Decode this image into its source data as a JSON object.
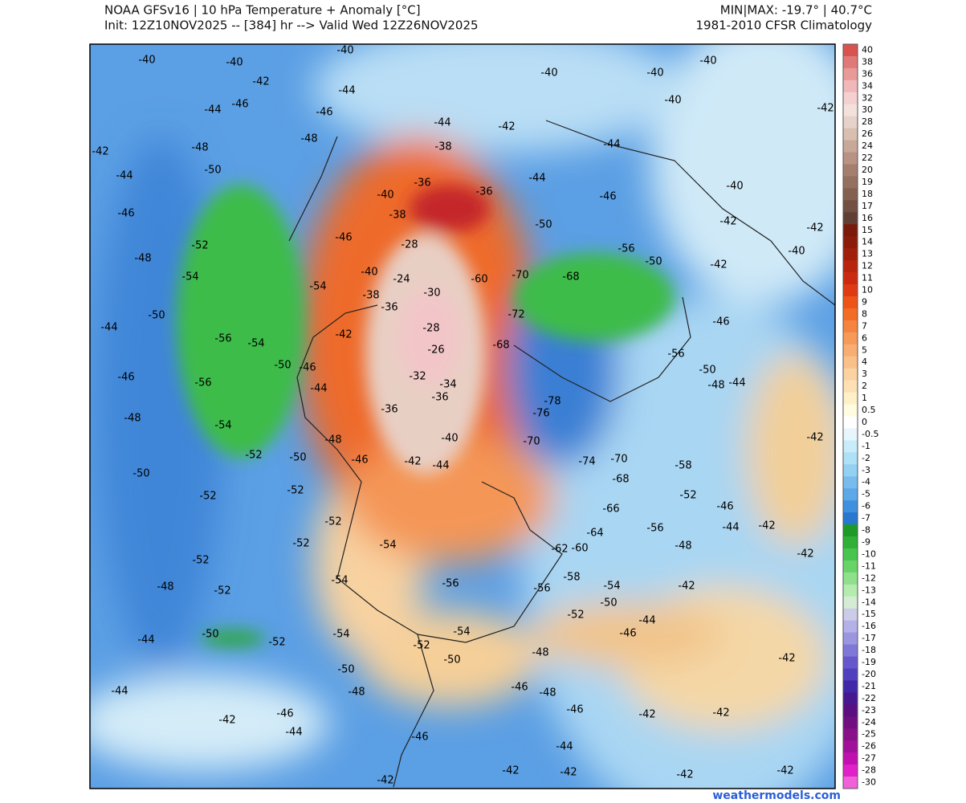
{
  "header": {
    "title": "NOAA GFSv16 | 10 hPa Temperature + Anomaly [°C]",
    "init": "Init: 12Z10NOV2025 -- [384] hr --> Valid Wed 12Z26NOV2025",
    "minmax": "MIN|MAX: -19.7° | 40.7°C",
    "climatology": "1981-2010 CFSR Climatology"
  },
  "colorbar": {
    "values": [
      40,
      38,
      36,
      34,
      32,
      30,
      28,
      26,
      24,
      22,
      20,
      19,
      18,
      17,
      16,
      15,
      14,
      13,
      12,
      11,
      10,
      9,
      8,
      7,
      6,
      5,
      4,
      3,
      2,
      1,
      0.5,
      0,
      -0.5,
      -1,
      -2,
      -3,
      -4,
      -5,
      -6,
      -7,
      -8,
      -9,
      -10,
      -11,
      -12,
      -13,
      -14,
      -15,
      -16,
      -17,
      -18,
      -19,
      -20,
      -21,
      -22,
      -23,
      -24,
      -25,
      -26,
      -27,
      -28,
      -30
    ],
    "colors": [
      "#d9544f",
      "#e07a78",
      "#e89a98",
      "#f0b8b8",
      "#f5d0d0",
      "#f3e2dc",
      "#e6d2c8",
      "#d8bfb0",
      "#c8a898",
      "#b89282",
      "#a67e6e",
      "#957060",
      "#846050",
      "#725042",
      "#604035",
      "#7a1a0a",
      "#8c1c0a",
      "#a0200c",
      "#b8240e",
      "#cc2a10",
      "#e03a14",
      "#ee5418",
      "#f26c26",
      "#f48440",
      "#f69a5a",
      "#f8ae72",
      "#fac08a",
      "#fcd2a0",
      "#fde0b4",
      "#fff0c8",
      "#fffce0",
      "#ffffff",
      "#e6f6fc",
      "#c8ecf8",
      "#aee0f6",
      "#94d0f2",
      "#78bcee",
      "#5ca8e8",
      "#4090e0",
      "#2878d0",
      "#1e9a28",
      "#30b038",
      "#48c450",
      "#68d468",
      "#8ee08a",
      "#b4ecb0",
      "#d4ecd4",
      "#cccce8",
      "#b4b0e8",
      "#9a96e0",
      "#8078d8",
      "#6658cc",
      "#5040c0",
      "#4028a8",
      "#481890",
      "#5a1080",
      "#701080",
      "#881088",
      "#a01098",
      "#c010b0",
      "#e020c8",
      "#f060d8"
    ]
  },
  "contour_labels": [
    -40,
    -40,
    -42,
    -46,
    -44,
    -42,
    -48,
    -50,
    -44,
    -46,
    -48,
    -52,
    -54,
    -50,
    -44,
    -56,
    -54,
    -46,
    -56,
    -48,
    -54,
    -52,
    -50,
    -52,
    -52,
    -48,
    -52,
    -50,
    -44,
    -52,
    -44,
    -42,
    -46,
    -44,
    -40,
    -44,
    -46,
    -48,
    -44,
    -42,
    -38,
    -36,
    -36,
    -40,
    -38,
    -28,
    -24,
    -30,
    -28,
    -26,
    -32,
    -34,
    -36,
    -36,
    -40,
    -42,
    -44,
    -60,
    -72,
    -68,
    -70,
    -68,
    -78,
    -76,
    -70,
    -74,
    -70,
    -68,
    -66,
    -64,
    -62,
    -60,
    -58,
    -56,
    -54,
    -50,
    -52,
    -46,
    -44,
    -48,
    -50,
    -52,
    -54,
    -56,
    -54,
    -54,
    -52,
    -52,
    -52,
    -50,
    -48,
    -46,
    -46,
    -44,
    -42,
    -38,
    -36,
    -40,
    -46,
    -54,
    -50,
    -54,
    -50,
    -48,
    -46,
    -48,
    -46,
    -42,
    -42,
    -44,
    -42,
    -42,
    -42,
    -42,
    -46,
    -42,
    -40,
    -40,
    -40,
    -40,
    -42,
    -44,
    -46,
    -44,
    -50,
    -56,
    -50,
    -42,
    -42,
    -40,
    -42,
    -40,
    -46,
    -56,
    -50,
    -48,
    -44,
    -42,
    -58,
    -52,
    -46,
    -44,
    -42,
    -42,
    -42,
    -42,
    -48,
    -56
  ],
  "footer": "weathermodels.com"
}
